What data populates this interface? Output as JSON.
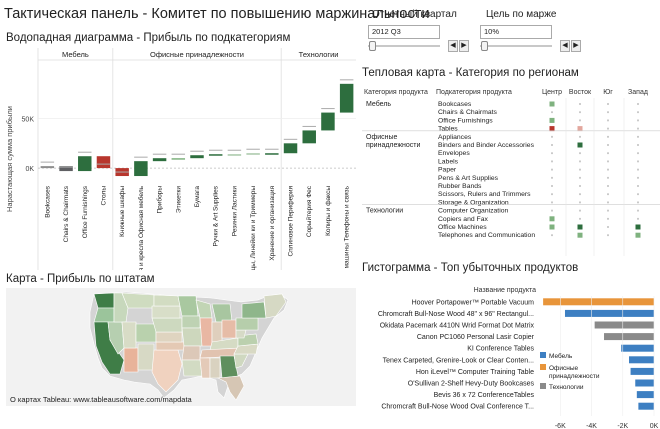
{
  "title": "Тактическая панель - Комитет по повышению маржинальности",
  "filters": {
    "quarter": {
      "label": "Отчетный квартал",
      "value": "2012 Q3",
      "slider_pos": 0.02
    },
    "margin": {
      "label": "Цель по марже",
      "value": "10%",
      "slider_pos": 0.02
    },
    "prev": "◀",
    "next": "▶"
  },
  "waterfall": {
    "title": "Водопадная диаграмма - Прибыль по подкатегориям",
    "ylabel": "Нарастающая сумма прибыли",
    "groups": [
      "Мебель",
      "Офисные принадлежности",
      "Технологии"
    ]
  },
  "heatmap": {
    "title": "Тепловая карта - Категория по регионам",
    "col_category": "Категория продукта",
    "col_subcategory": "Подкатегория продукта",
    "regions": [
      "Центр",
      "Восток",
      "Юг",
      "Запад"
    ],
    "categories": [
      {
        "name": "Мебель",
        "rows": [
          "Bookcases",
          "Chairs & Chairmats",
          "Office Furnishings",
          "Tables"
        ]
      },
      {
        "name": "Офисные принадлежности",
        "rows": [
          "Appliances",
          "Binders and Binder Accessories",
          "Envelopes",
          "Labels",
          "Paper",
          "Pens & Art Supplies",
          "Rubber Bands",
          "Scissors, Rulers and Trimmers",
          "Storage & Organization"
        ]
      },
      {
        "name": "Технологии",
        "rows": [
          "Computer Organization",
          "Copiers and Fax",
          "Office Machines",
          "Telephones and Communication"
        ]
      }
    ]
  },
  "map": {
    "title": "Карта - Прибыль по штатам",
    "credit": "О картах Tableau: www.tableausoftware.com/mapdata"
  },
  "histogram": {
    "title": "Гистограмма - Топ убыточных продуктов",
    "header": "Название продукта",
    "legend": [
      {
        "label": "Мебель",
        "color": "#3d7fc2"
      },
      {
        "label": "Офисные принадлежности",
        "color": "#e8953a"
      },
      {
        "label": "Технологии",
        "color": "#8a8a8a"
      }
    ]
  },
  "chart_data": [
    {
      "type": "bar",
      "subtype": "waterfall",
      "title": "Водопадная диаграмма - Прибыль по подкатегориям",
      "ylabel": "Нарастающая сумма прибыли",
      "yticks": [
        "50K",
        "0K"
      ],
      "ylim": [
        -12000,
        105000
      ],
      "categories": [
        "Bookcases",
        "Chairs & Chairmats",
        "Office Furnishings",
        "Столы",
        "Книжные шкафы",
        "Пиe. Стулья и кресла Офисная мебель",
        "Приборы",
        "Этикетки",
        "Бумага",
        "Ручки & Art Supplies",
        "Резинки Ластики",
        "Ножницы, Линейки ки и Триммеры",
        "Хранение и организация",
        "Сплиновое Периферия",
        "Сорыйтерия Фес",
        "Копиры и факсы",
        "Офисные машины Телефоны и связь"
      ],
      "start": [
        0,
        2000,
        -3000,
        12000,
        0,
        -8000,
        7000,
        10000,
        10000,
        13000,
        14000,
        14000,
        15000,
        15000,
        25000,
        38000,
        56000
      ],
      "end": [
        2000,
        -3000,
        12000,
        0,
        -8000,
        7000,
        10000,
        10000,
        13000,
        14000,
        14000,
        15000,
        15000,
        25000,
        38000,
        56000,
        85000
      ],
      "colors": [
        "#8e8e8e",
        "#5f6063",
        "#2d6e3e",
        "#b8362d",
        "#b8362d",
        "#2d6e3e",
        "#2d6e3e",
        "#7fb27f",
        "#2d6e3e",
        "#2d6e3e",
        "#a8c8a8",
        "#a8c8a8",
        "#2d6e3e",
        "#2d6e3e",
        "#2d6e3e",
        "#2d6e3e",
        "#2d6e3e"
      ],
      "group_bounds": [
        4,
        13
      ]
    },
    {
      "type": "heatmap",
      "title": "Тепловая карта - Категория по регионам",
      "regions": [
        "Центр",
        "Восток",
        "Юг",
        "Запад"
      ],
      "cells": [
        [
          "#7fb27f",
          "#c4c4c4",
          "#c4c4c4",
          "#c4c4c4"
        ],
        [
          "#c4c4c4",
          "#c4c4c4",
          "#c4c4c4",
          "#c4c4c4"
        ],
        [
          "#7fb27f",
          "#c4c4c4",
          "#c4c4c4",
          "#c4c4c4"
        ],
        [
          "#b8362d",
          "#e3a79e",
          "#c4c4c4",
          "#c4c4c4"
        ],
        [
          "#c4c4c4",
          "#c4c4c4",
          "#c4c4c4",
          "#c4c4c4"
        ],
        [
          "#c4c4c4",
          "#2d6e3e",
          "#c4c4c4",
          "#c4c4c4"
        ],
        [
          "#c4c4c4",
          "#c4c4c4",
          "#c4c4c4",
          "#c4c4c4"
        ],
        [
          "#c4c4c4",
          "#c4c4c4",
          "#c4c4c4",
          "#c4c4c4"
        ],
        [
          "#c4c4c4",
          "#c4c4c4",
          "#c4c4c4",
          "#c4c4c4"
        ],
        [
          "#c4c4c4",
          "#c4c4c4",
          "#c4c4c4",
          "#c4c4c4"
        ],
        [
          "#c4c4c4",
          "#c4c4c4",
          "#c4c4c4",
          "#c4c4c4"
        ],
        [
          "#c4c4c4",
          "#c4c4c4",
          "#c4c4c4",
          "#c4c4c4"
        ],
        [
          "#c4c4c4",
          "#c4c4c4",
          "#c4c4c4",
          "#c4c4c4"
        ],
        [
          "#c4c4c4",
          "#c4c4c4",
          "#c4c4c4",
          "#c4c4c4"
        ],
        [
          "#7fb27f",
          "#c4c4c4",
          "#c4c4c4",
          "#c4c4c4"
        ],
        [
          "#7fb27f",
          "#2d6e3e",
          "#c4c4c4",
          "#2d6e3e"
        ],
        [
          "#c4c4c4",
          "#7fb27f",
          "#c4c4c4",
          "#7fb27f"
        ]
      ]
    },
    {
      "type": "bar",
      "orientation": "horizontal",
      "title": "Гистограмма - Топ убыточных продуктов",
      "categories": [
        "Hoover Portapower™ Portable Vacuum",
        "Chromcraft Bull-Nose Wood 48\" x 96\" Rectangul...",
        "Okidata Pacemark 4410N Wrid Format Dot Matrix",
        "Canon PC1060 Personal Lasir Copier",
        "KI Conference Tables",
        "Tenex Carpeted, Grenire-Look or Clear Conten...",
        "Hon iLevel™ Computer Training Table",
        "O'Sullivan 2-Shelf Hevy-Duty Bookcases",
        "Bevis 36 x 72 ConferenceTables",
        "Chromcraft Bull-Nose Wood Oval Conference T..."
      ],
      "values": [
        -7100,
        -5700,
        -3800,
        -3200,
        -2100,
        -1600,
        -1500,
        -1200,
        -1100,
        -1000
      ],
      "colors": [
        "#e8953a",
        "#3d7fc2",
        "#8a8a8a",
        "#8a8a8a",
        "#3d7fc2",
        "#3d7fc2",
        "#3d7fc2",
        "#3d7fc2",
        "#3d7fc2",
        "#3d7fc2"
      ],
      "xticks": [
        "-6K",
        "-4K",
        "-2K",
        "0K"
      ],
      "xlim": [
        -7300,
        0
      ]
    }
  ]
}
